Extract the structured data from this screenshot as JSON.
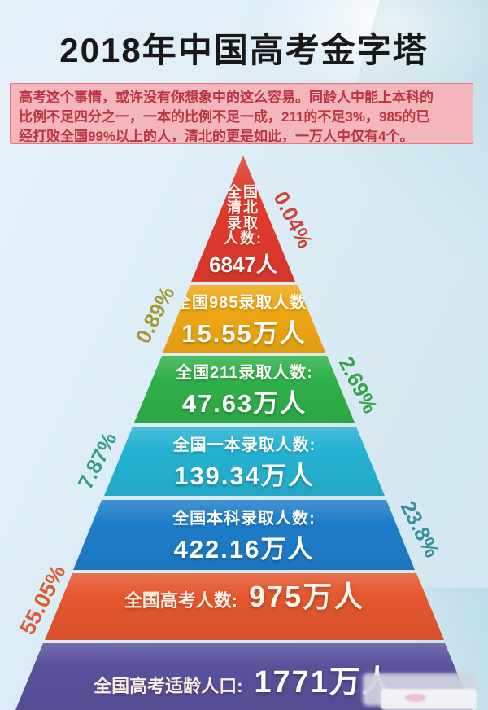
{
  "title": "2018年中国高考金字塔",
  "intro": {
    "lines": [
      "高考这个事情，或许没有你想象中的这么容易。同龄人中能上本科的",
      "比例不足四分之一，一本的比例不足一成，211的不足3%，985的已",
      "经打败全国99%以上的人，清北的更是如此，一万人中仅有4个。"
    ]
  },
  "chart_data": {
    "type": "pyramid",
    "title": "2018年中国高考金字塔",
    "levels": [
      {
        "name": "全国清北录取人数",
        "label_rows": [
          "全国",
          "清北",
          "录取",
          "人数:"
        ],
        "value": "6847人",
        "number": 6847,
        "unit": "人",
        "percent": "0.04%",
        "percent_value": 0.04,
        "color": "#e23a2d",
        "percent_color": "#cf4238"
      },
      {
        "name": "全国985录取人数",
        "label": "全国985录取人数:",
        "value": "15.55万人",
        "number": 15.55,
        "unit": "万人",
        "percent": "0.89%",
        "percent_value": 0.89,
        "color": "#efa712",
        "percent_color": "#a29a33"
      },
      {
        "name": "全国211录取人数",
        "label": "全国211录取人数:",
        "value": "47.63万人",
        "number": 47.63,
        "unit": "万人",
        "percent": "2.69%",
        "percent_value": 2.69,
        "color": "#2fb04a",
        "percent_color": "#33a34e"
      },
      {
        "name": "全国一本录取人数",
        "label": "全国一本录取人数:",
        "value": "139.34万人",
        "number": 139.34,
        "unit": "万人",
        "percent": "7.87%",
        "percent_value": 7.87,
        "color": "#25b2d3",
        "percent_color": "#349e8b"
      },
      {
        "name": "全国本科录取人数",
        "label": "全国本科录取人数:",
        "value": "422.16万人",
        "number": 422.16,
        "unit": "万人",
        "percent": "23.8%",
        "percent_value": 23.8,
        "color": "#1e7dc9",
        "percent_color": "#37909a"
      },
      {
        "name": "全国高考人数",
        "label": "全国高考人数:",
        "value": "975万人",
        "number": 975,
        "unit": "万人",
        "percent": "55.05%",
        "percent_value": 55.05,
        "color": "#e4562e",
        "percent_color": "#dd5c33"
      },
      {
        "name": "全国高考适龄人口",
        "label": "全国高考适龄人口:",
        "value": "1771万人",
        "number": 1771,
        "unit": "万人",
        "color": "#58519c"
      }
    ]
  }
}
